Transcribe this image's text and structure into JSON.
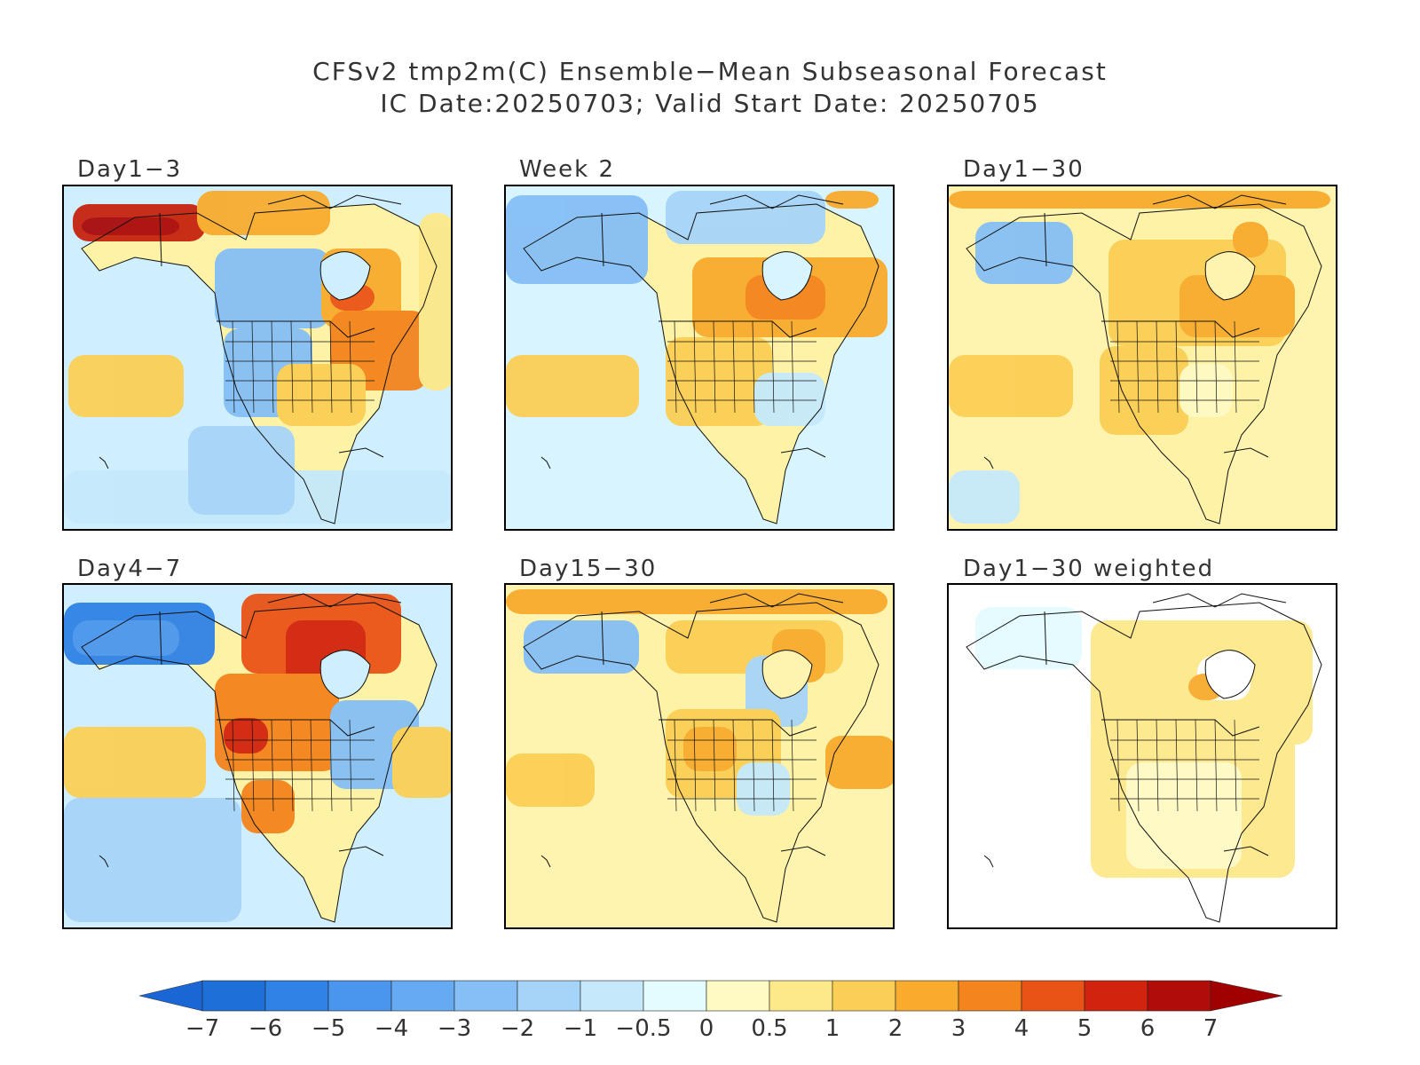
{
  "title": {
    "line1": "CFSv2 tmp2m(C) Ensemble−Mean Subseasonal Forecast",
    "line2": "IC Date:20250703; Valid Start Date: 20250705"
  },
  "panels": [
    {
      "id": "day1-3",
      "label": "Day1−3",
      "base": "#fdf2a6",
      "ocean": "#cfefff"
    },
    {
      "id": "week2",
      "label": "Week 2",
      "base": "#fdf2a6",
      "ocean": "#d8f4ff"
    },
    {
      "id": "day1-30",
      "label": "Day1−30",
      "base": "#fdf2a6",
      "ocean": "#fff3b0"
    },
    {
      "id": "day4-7",
      "label": "Day4−7",
      "base": "#fdf2a6",
      "ocean": "#cfefff"
    },
    {
      "id": "day15-30",
      "label": "Day15−30",
      "base": "#fdf2a6",
      "ocean": "#fff3b0"
    },
    {
      "id": "day1-30-weighted",
      "label": "Day1−30 weighted",
      "base": "#ffffff",
      "ocean": "#ffffff"
    }
  ],
  "colorbar": {
    "labels": [
      "−7",
      "−6",
      "−5",
      "−4",
      "−3",
      "−2",
      "−1",
      "−0.5",
      "0",
      "0.5",
      "1",
      "2",
      "3",
      "4",
      "5",
      "6",
      "7"
    ],
    "colors": [
      "#1f6fd9",
      "#2f82e6",
      "#4a96ee",
      "#66aaf3",
      "#85bff6",
      "#a6d4f8",
      "#c5e9fb",
      "#e4fbff",
      "#fff9c3",
      "#fde88a",
      "#fbcf55",
      "#f8ab2d",
      "#f4841d",
      "#e95316",
      "#d2230f",
      "#b00c0a"
    ],
    "low_arrow_color": "#1a66d4",
    "high_arrow_color": "#a00000"
  }
}
